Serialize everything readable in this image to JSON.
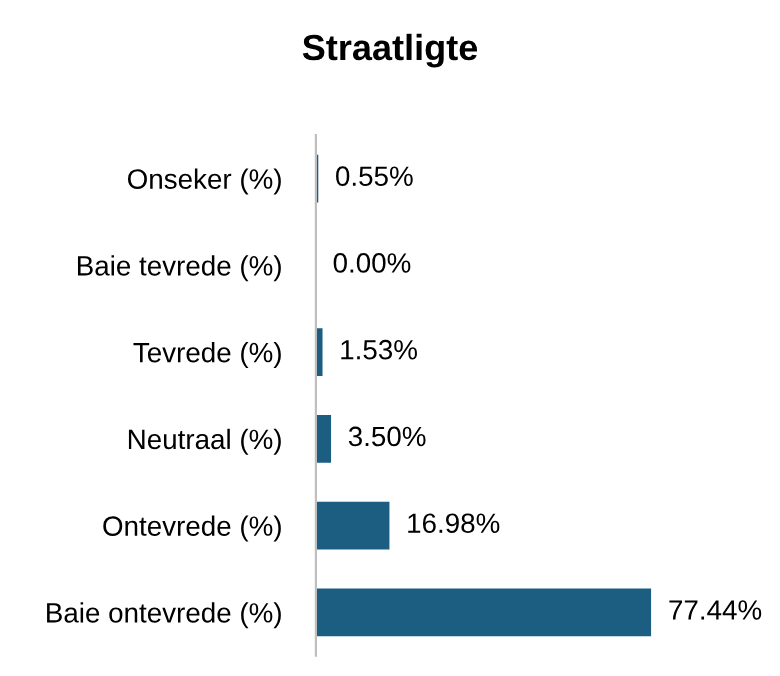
{
  "chart_data": {
    "type": "bar",
    "orientation": "horizontal",
    "title": "Straatligte",
    "categories": [
      "Onseker (%)",
      "Baie tevrede (%)",
      "Tevrede (%)",
      "Neutraal (%)",
      "Ontevrede (%)",
      "Baie ontevrede (%)"
    ],
    "values": [
      0.55,
      0.0,
      1.53,
      3.5,
      16.98,
      77.44
    ],
    "value_labels": [
      "0.55%",
      "0.00%",
      "1.53%",
      "3.50%",
      "16.98%",
      "77.44%"
    ],
    "color": "#1b5e82",
    "grid": false,
    "legend": false
  }
}
